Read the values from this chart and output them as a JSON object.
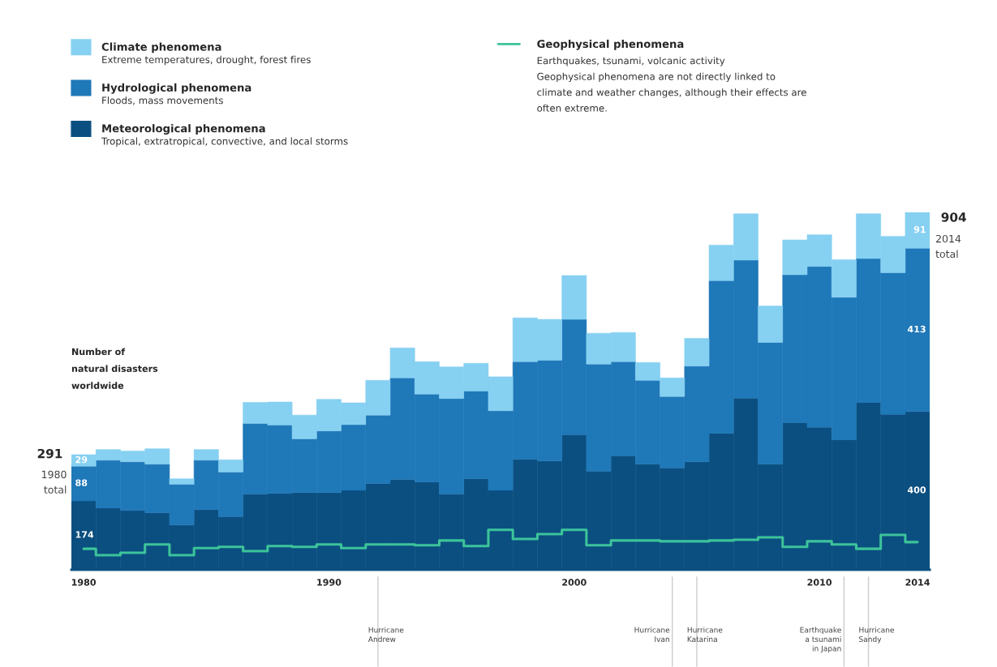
{
  "chart_data": {
    "type": "bar",
    "stacked": true,
    "legend": "top",
    "ylabel": "Number of\nnatural disasters\nworldwide",
    "x": [
      1980,
      1981,
      1982,
      1983,
      1984,
      1985,
      1986,
      1987,
      1988,
      1989,
      1990,
      1991,
      1992,
      1993,
      1994,
      1995,
      1996,
      1997,
      1998,
      1999,
      2000,
      2001,
      2002,
      2003,
      2004,
      2005,
      2006,
      2007,
      2008,
      2009,
      2010,
      2011,
      2012,
      2013,
      2014
    ],
    "xlim": [
      1979.5,
      2014.5
    ],
    "xticks": [
      1980,
      1990,
      2000,
      2010,
      2014
    ],
    "tick_labels": "x",
    "series": [
      {
        "name": "Meteorological phenomena",
        "color": "#0b4f80",
        "values": [
          174,
          156,
          150,
          144,
          113,
          152,
          134,
          191,
          193,
          195,
          195,
          201,
          218,
          228,
          222,
          191,
          230,
          201,
          279,
          275,
          341,
          249,
          288,
          267,
          257,
          273,
          345,
          434,
          267,
          372,
          360,
          329,
          423,
          393,
          400
        ],
        "value_labels": [
          "174",
          null,
          null,
          null,
          null,
          null,
          null,
          null,
          null,
          null,
          null,
          null,
          null,
          null,
          null,
          null,
          null,
          null,
          null,
          null,
          null,
          null,
          null,
          null,
          null,
          null,
          null,
          null,
          null,
          null,
          null,
          null,
          null,
          null,
          "400"
        ]
      },
      {
        "name": "Hydrological phenomena",
        "color": "#1f78b8",
        "values": [
          88,
          121,
          123,
          123,
          103,
          125,
          113,
          179,
          173,
          136,
          156,
          166,
          173,
          257,
          222,
          242,
          222,
          201,
          247,
          255,
          292,
          271,
          238,
          212,
          181,
          242,
          386,
          349,
          308,
          374,
          407,
          360,
          364,
          358,
          413
        ],
        "value_labels": [
          "88",
          null,
          null,
          null,
          null,
          null,
          null,
          null,
          null,
          null,
          null,
          null,
          null,
          null,
          null,
          null,
          null,
          null,
          null,
          null,
          null,
          null,
          null,
          null,
          null,
          null,
          null,
          null,
          null,
          null,
          null,
          null,
          null,
          null,
          "413"
        ]
      },
      {
        "name": "Climate phenomena",
        "color": "#86d0f2",
        "values": [
          29,
          27,
          27,
          39,
          14,
          27,
          31,
          53,
          58,
          60,
          80,
          55,
          88,
          76,
          82,
          80,
          70,
          86,
          111,
          103,
          111,
          78,
          74,
          45,
          47,
          70,
          90,
          117,
          92,
          88,
          80,
          95,
          113,
          92,
          91
        ],
        "value_labels": [
          "29",
          null,
          null,
          null,
          null,
          null,
          null,
          null,
          null,
          null,
          null,
          null,
          null,
          null,
          null,
          null,
          null,
          null,
          null,
          null,
          null,
          null,
          null,
          null,
          null,
          null,
          null,
          null,
          null,
          null,
          null,
          null,
          null,
          null,
          "91"
        ]
      },
      {
        "name": "Geophysical phenomena",
        "type": "step",
        "color": "#3cc49a",
        "values": [
          53,
          37,
          43,
          64,
          37,
          55,
          58,
          47,
          60,
          58,
          64,
          55,
          64,
          64,
          62,
          74,
          60,
          101,
          78,
          90,
          101,
          62,
          74,
          74,
          72,
          72,
          74,
          76,
          82,
          58,
          72,
          64,
          53,
          88,
          70
        ]
      }
    ],
    "totals": [
      "291",
      null,
      null,
      null,
      null,
      null,
      null,
      null,
      null,
      null,
      null,
      null,
      null,
      null,
      null,
      null,
      null,
      null,
      null,
      null,
      null,
      null,
      null,
      null,
      null,
      null,
      null,
      null,
      null,
      null,
      null,
      null,
      null,
      null,
      "904"
    ],
    "annotations": [
      "Tropical, extratropical, convective, and local storms",
      "Floods, mass movements",
      "Extreme temperatures, drought, forest fires",
      "Earthquakes, tsunami, volcanic activity\nGeophysical phenomena are not directly linked to\nclimate and weather changes, although their effects are\noften extreme.",
      "1980\ntotal",
      "2014\ntotal"
    ],
    "ref_lines": [
      {
        "axis": "x",
        "value": 1992,
        "label": "Hurricane\nAndrew"
      },
      {
        "axis": "x",
        "value": 2004,
        "label": "Hurricane\nIvan"
      },
      {
        "axis": "x",
        "value": 2005,
        "label": "Hurricane\nKatarina"
      },
      {
        "axis": "x",
        "value": 2011,
        "label": "Earthquake\na tsunami\nin Japan"
      },
      {
        "axis": "x",
        "value": 2012,
        "label": "Hurricane\nSandy"
      }
    ]
  }
}
